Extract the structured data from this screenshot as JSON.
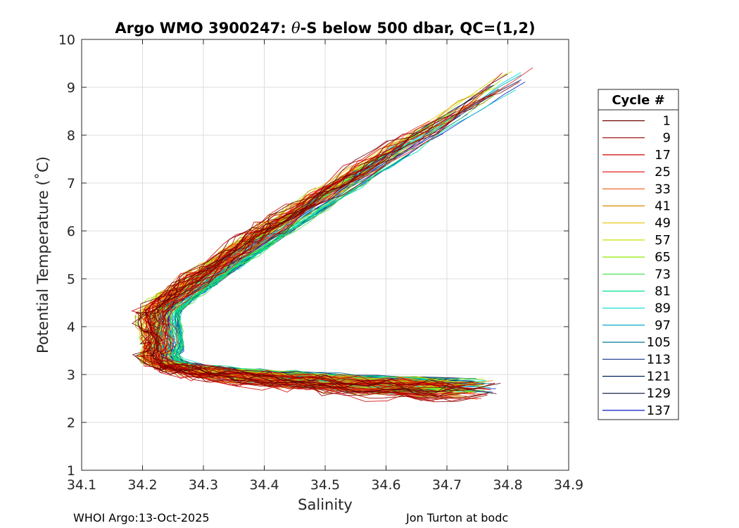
{
  "chart_data": {
    "type": "line",
    "title_prefix": "Argo WMO 3900247: ",
    "title_symbol": "θ",
    "title_suffix": "-S below 500 dbar,  QC=(1,2)",
    "xlabel": "Salinity",
    "ylabel": "Potential Temperature (˚C)",
    "xlim": [
      34.1,
      34.9
    ],
    "ylim": [
      1,
      10
    ],
    "xticks": [
      34.1,
      34.2,
      34.3,
      34.4,
      34.5,
      34.6,
      34.7,
      34.8,
      34.9
    ],
    "xtick_labels": [
      "34.1",
      "34.2",
      "34.3",
      "34.4",
      "34.5",
      "34.6",
      "34.7",
      "34.8",
      "34.9"
    ],
    "yticks": [
      1,
      2,
      3,
      4,
      5,
      6,
      7,
      8,
      9,
      10
    ],
    "ytick_labels": [
      "1",
      "2",
      "3",
      "4",
      "5",
      "6",
      "7",
      "8",
      "9",
      "10"
    ],
    "grid": true,
    "legend_title": "Cycle #",
    "legend_position": "right",
    "series": [
      {
        "name": "1",
        "color": "#6b0000",
        "values": [
          [
            34.14,
            4.2
          ],
          [
            34.16,
            4.4
          ],
          [
            34.19,
            4.9
          ]
        ],
        "x": [
          34.15,
          34.19,
          34.25,
          34.32,
          34.42,
          34.52,
          34.62,
          34.7,
          34.76
        ]
      },
      {
        "name": "9",
        "color": "#9a0000",
        "values": [],
        "x": []
      },
      {
        "name": "17",
        "color": "#d00000",
        "values": [],
        "x": []
      },
      {
        "name": "25",
        "color": "#e52020",
        "values": [],
        "x": []
      },
      {
        "name": "33",
        "color": "#ee5a12",
        "values": [],
        "x": []
      },
      {
        "name": "41",
        "color": "#d98a00",
        "values": [],
        "x": []
      },
      {
        "name": "49",
        "color": "#e8c400",
        "values": [],
        "x": []
      },
      {
        "name": "57",
        "color": "#c9e000",
        "values": [],
        "x": []
      },
      {
        "name": "65",
        "color": "#8cea00",
        "values": [],
        "x": []
      },
      {
        "name": "73",
        "color": "#3fe04a",
        "values": [],
        "x": []
      },
      {
        "name": "81",
        "color": "#00e08c",
        "values": [],
        "x": []
      },
      {
        "name": "89",
        "color": "#00d8d0",
        "values": [],
        "x": []
      },
      {
        "name": "97",
        "color": "#00aac8",
        "values": [],
        "x": []
      },
      {
        "name": "105",
        "color": "#007a9a",
        "values": [],
        "x": []
      },
      {
        "name": "113",
        "color": "#10308a",
        "values": [],
        "x": []
      },
      {
        "name": "121",
        "color": "#002060",
        "values": [],
        "x": []
      },
      {
        "name": "129",
        "color": "#00103a",
        "values": [],
        "x": []
      },
      {
        "name": "137",
        "color": "#0018c0",
        "values": [],
        "x": []
      }
    ]
  },
  "footer": {
    "left": "WHOI Argo:13-Oct-2025",
    "right": "Jon Turton at bodc"
  }
}
